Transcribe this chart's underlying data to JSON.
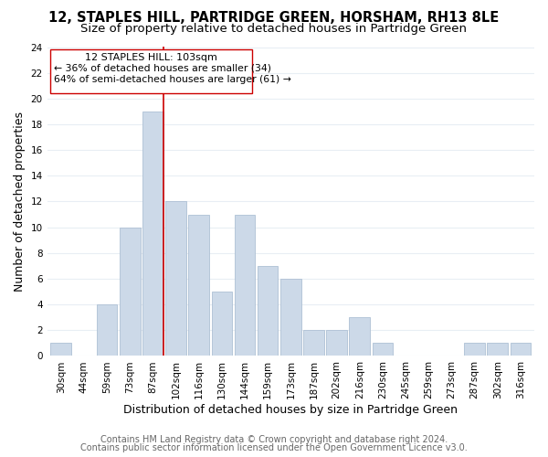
{
  "title": "12, STAPLES HILL, PARTRIDGE GREEN, HORSHAM, RH13 8LE",
  "subtitle": "Size of property relative to detached houses in Partridge Green",
  "xlabel": "Distribution of detached houses by size in Partridge Green",
  "ylabel": "Number of detached properties",
  "bar_color": "#ccd9e8",
  "bar_edgecolor": "#aec0d4",
  "bin_labels": [
    "30sqm",
    "44sqm",
    "59sqm",
    "73sqm",
    "87sqm",
    "102sqm",
    "116sqm",
    "130sqm",
    "144sqm",
    "159sqm",
    "173sqm",
    "187sqm",
    "202sqm",
    "216sqm",
    "230sqm",
    "245sqm",
    "259sqm",
    "273sqm",
    "287sqm",
    "302sqm",
    "316sqm"
  ],
  "bar_heights": [
    1,
    0,
    4,
    10,
    19,
    12,
    11,
    5,
    11,
    7,
    6,
    2,
    2,
    3,
    1,
    0,
    0,
    0,
    1,
    1,
    1
  ],
  "ylim": [
    0,
    24
  ],
  "yticks": [
    0,
    2,
    4,
    6,
    8,
    10,
    12,
    14,
    16,
    18,
    20,
    22,
    24
  ],
  "vline_color": "#cc0000",
  "annotation_title": "12 STAPLES HILL: 103sqm",
  "annotation_line1": "← 36% of detached houses are smaller (34)",
  "annotation_line2": "64% of semi-detached houses are larger (61) →",
  "footer1": "Contains HM Land Registry data © Crown copyright and database right 2024.",
  "footer2": "Contains public sector information licensed under the Open Government Licence v3.0.",
  "background_color": "#ffffff",
  "grid_color": "#e8eef4",
  "title_fontsize": 10.5,
  "subtitle_fontsize": 9.5,
  "axis_label_fontsize": 9,
  "tick_fontsize": 7.5,
  "footer_fontsize": 7
}
